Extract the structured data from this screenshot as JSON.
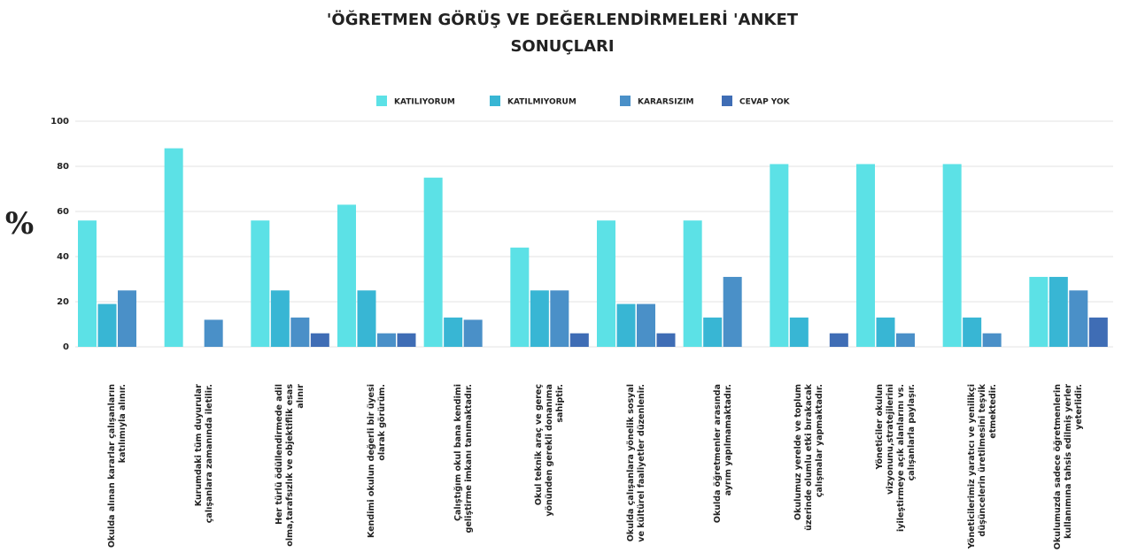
{
  "chart_data": {
    "type": "bar",
    "title": "'ÖĞRETMEN GÖRÜŞ VE DEĞERLENDİRMELERİ 'ANKET SONUÇLARI",
    "y_label": "%",
    "categories": [
      "Okulda alınan kararlar çalışanların katılımıyla alınır.",
      "Kurumdaki tüm duyurular çalışanlara zamanında iletilir.",
      "Her türlü ödüllendirmede adil olma,tarafsızlık ve objektiflik esas alınır",
      "Kendimi okulun değerli bir üyesi olarak görürüm.",
      "Çalıştığım okul bana kendimi geliştirme imkanı tanımaktadır.",
      "Okul teknik araç ve gereç yönünden gerekli donanıma sahiptir.",
      "Okulda çalışanlara yönelik sosyal ve kültürel faaliyetler düzenlenir.",
      "Okulda öğretmenler arasında ayrım yapılmamaktadır.",
      "Okulumuz yerelde ve toplum üzerinde olumlu etki bırakacak çalışmalar yapmaktadır.",
      "Yöneticiler okulun vizyonunu,stratejilerini iyileştirmeye açık alanlarını vs. çalışanlarla paylaşır.",
      "Yöneticilerimiz yaratıcı ve yenilikçi düşüncelerin üretilmesini teşvik etmektedir.",
      "Okulumuzda sadece öğretmenlerin kullanımına tahsis edilmiş yerler yeterlidir."
    ],
    "series": [
      {
        "name": "KATILIYORUM",
        "color": "#5ce1e6",
        "values": [
          56,
          88,
          56,
          63,
          75,
          44,
          56,
          56,
          81,
          81,
          81,
          31
        ]
      },
      {
        "name": "KATILMIYORUM",
        "color": "#38b6d4",
        "values": [
          19,
          0,
          25,
          25,
          13,
          25,
          19,
          13,
          13,
          13,
          13,
          31
        ]
      },
      {
        "name": "KARARSIZIM",
        "color": "#4a90c8",
        "values": [
          25,
          12,
          13,
          6,
          12,
          25,
          19,
          31,
          0,
          6,
          6,
          25
        ]
      },
      {
        "name": "CEVAP YOK",
        "color": "#3f6db5",
        "values": [
          0,
          0,
          6,
          6,
          0,
          6,
          6,
          0,
          6,
          0,
          0,
          13
        ]
      }
    ],
    "ylim": [
      0,
      100
    ],
    "yticks": [
      0,
      20,
      40,
      60,
      80,
      100
    ],
    "grid": true,
    "legend": "top"
  }
}
